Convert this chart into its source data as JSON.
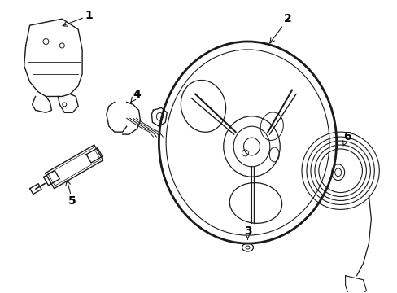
{
  "background_color": "#ffffff",
  "line_color": "#1a1a1a",
  "label_color": "#000000",
  "label_fontsize": 10,
  "figsize": [
    4.89,
    3.6
  ],
  "dpi": 100
}
